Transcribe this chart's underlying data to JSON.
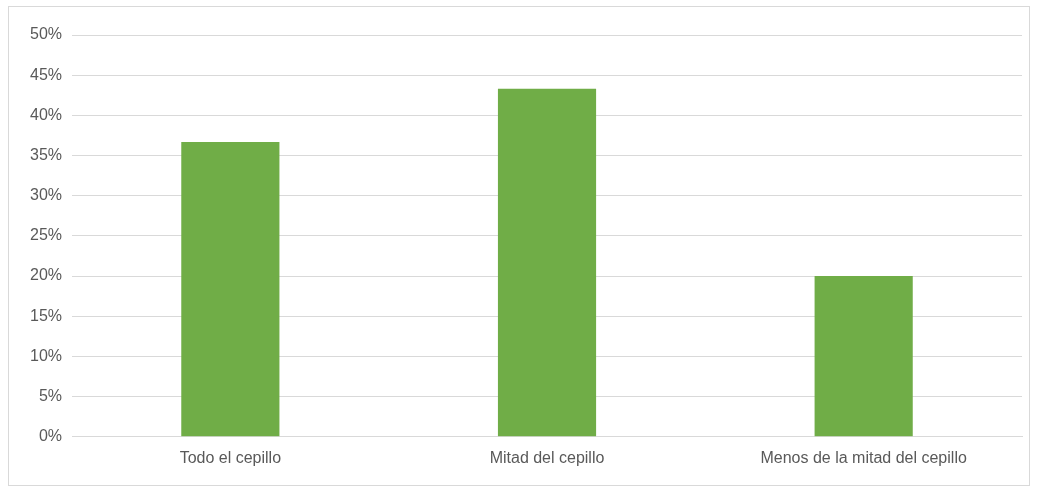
{
  "chart_data": {
    "type": "bar",
    "categories": [
      "Todo el cepillo",
      "Mitad del cepillo",
      "Menos de la mitad del cepillo"
    ],
    "values": [
      36.7,
      43.3,
      20
    ],
    "color": "#70ad47",
    "ylim": [
      0,
      50
    ],
    "yticks": [
      {
        "value": 0,
        "label": "0%"
      },
      {
        "value": 5,
        "label": "5%"
      },
      {
        "value": 10,
        "label": "10%"
      },
      {
        "value": 15,
        "label": "15%"
      },
      {
        "value": 20,
        "label": "20%"
      },
      {
        "value": 25,
        "label": "25%"
      },
      {
        "value": 30,
        "label": "30%"
      },
      {
        "value": 35,
        "label": "35%"
      },
      {
        "value": 40,
        "label": "40%"
      },
      {
        "value": 45,
        "label": "45%"
      },
      {
        "value": 50,
        "label": "50%"
      }
    ],
    "grid": "y"
  }
}
